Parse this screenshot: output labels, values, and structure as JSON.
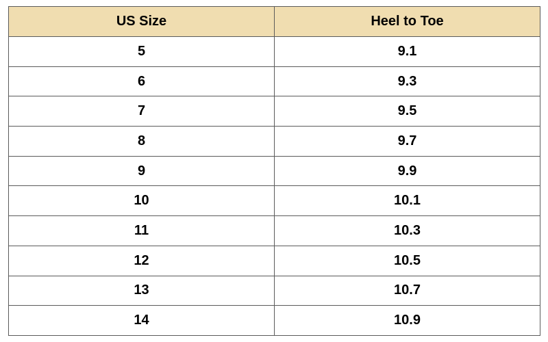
{
  "table": {
    "headers": [
      "US Size",
      "Heel to Toe"
    ],
    "header_color": "#f0ddb0",
    "rows": [
      [
        "5",
        "9.1"
      ],
      [
        "6",
        "9.3"
      ],
      [
        "7",
        "9.5"
      ],
      [
        "8",
        "9.7"
      ],
      [
        "9",
        "9.9"
      ],
      [
        "10",
        "10.1"
      ],
      [
        "11",
        "10.3"
      ],
      [
        "12",
        "10.5"
      ],
      [
        "13",
        "10.7"
      ],
      [
        "14",
        "10.9"
      ]
    ]
  }
}
